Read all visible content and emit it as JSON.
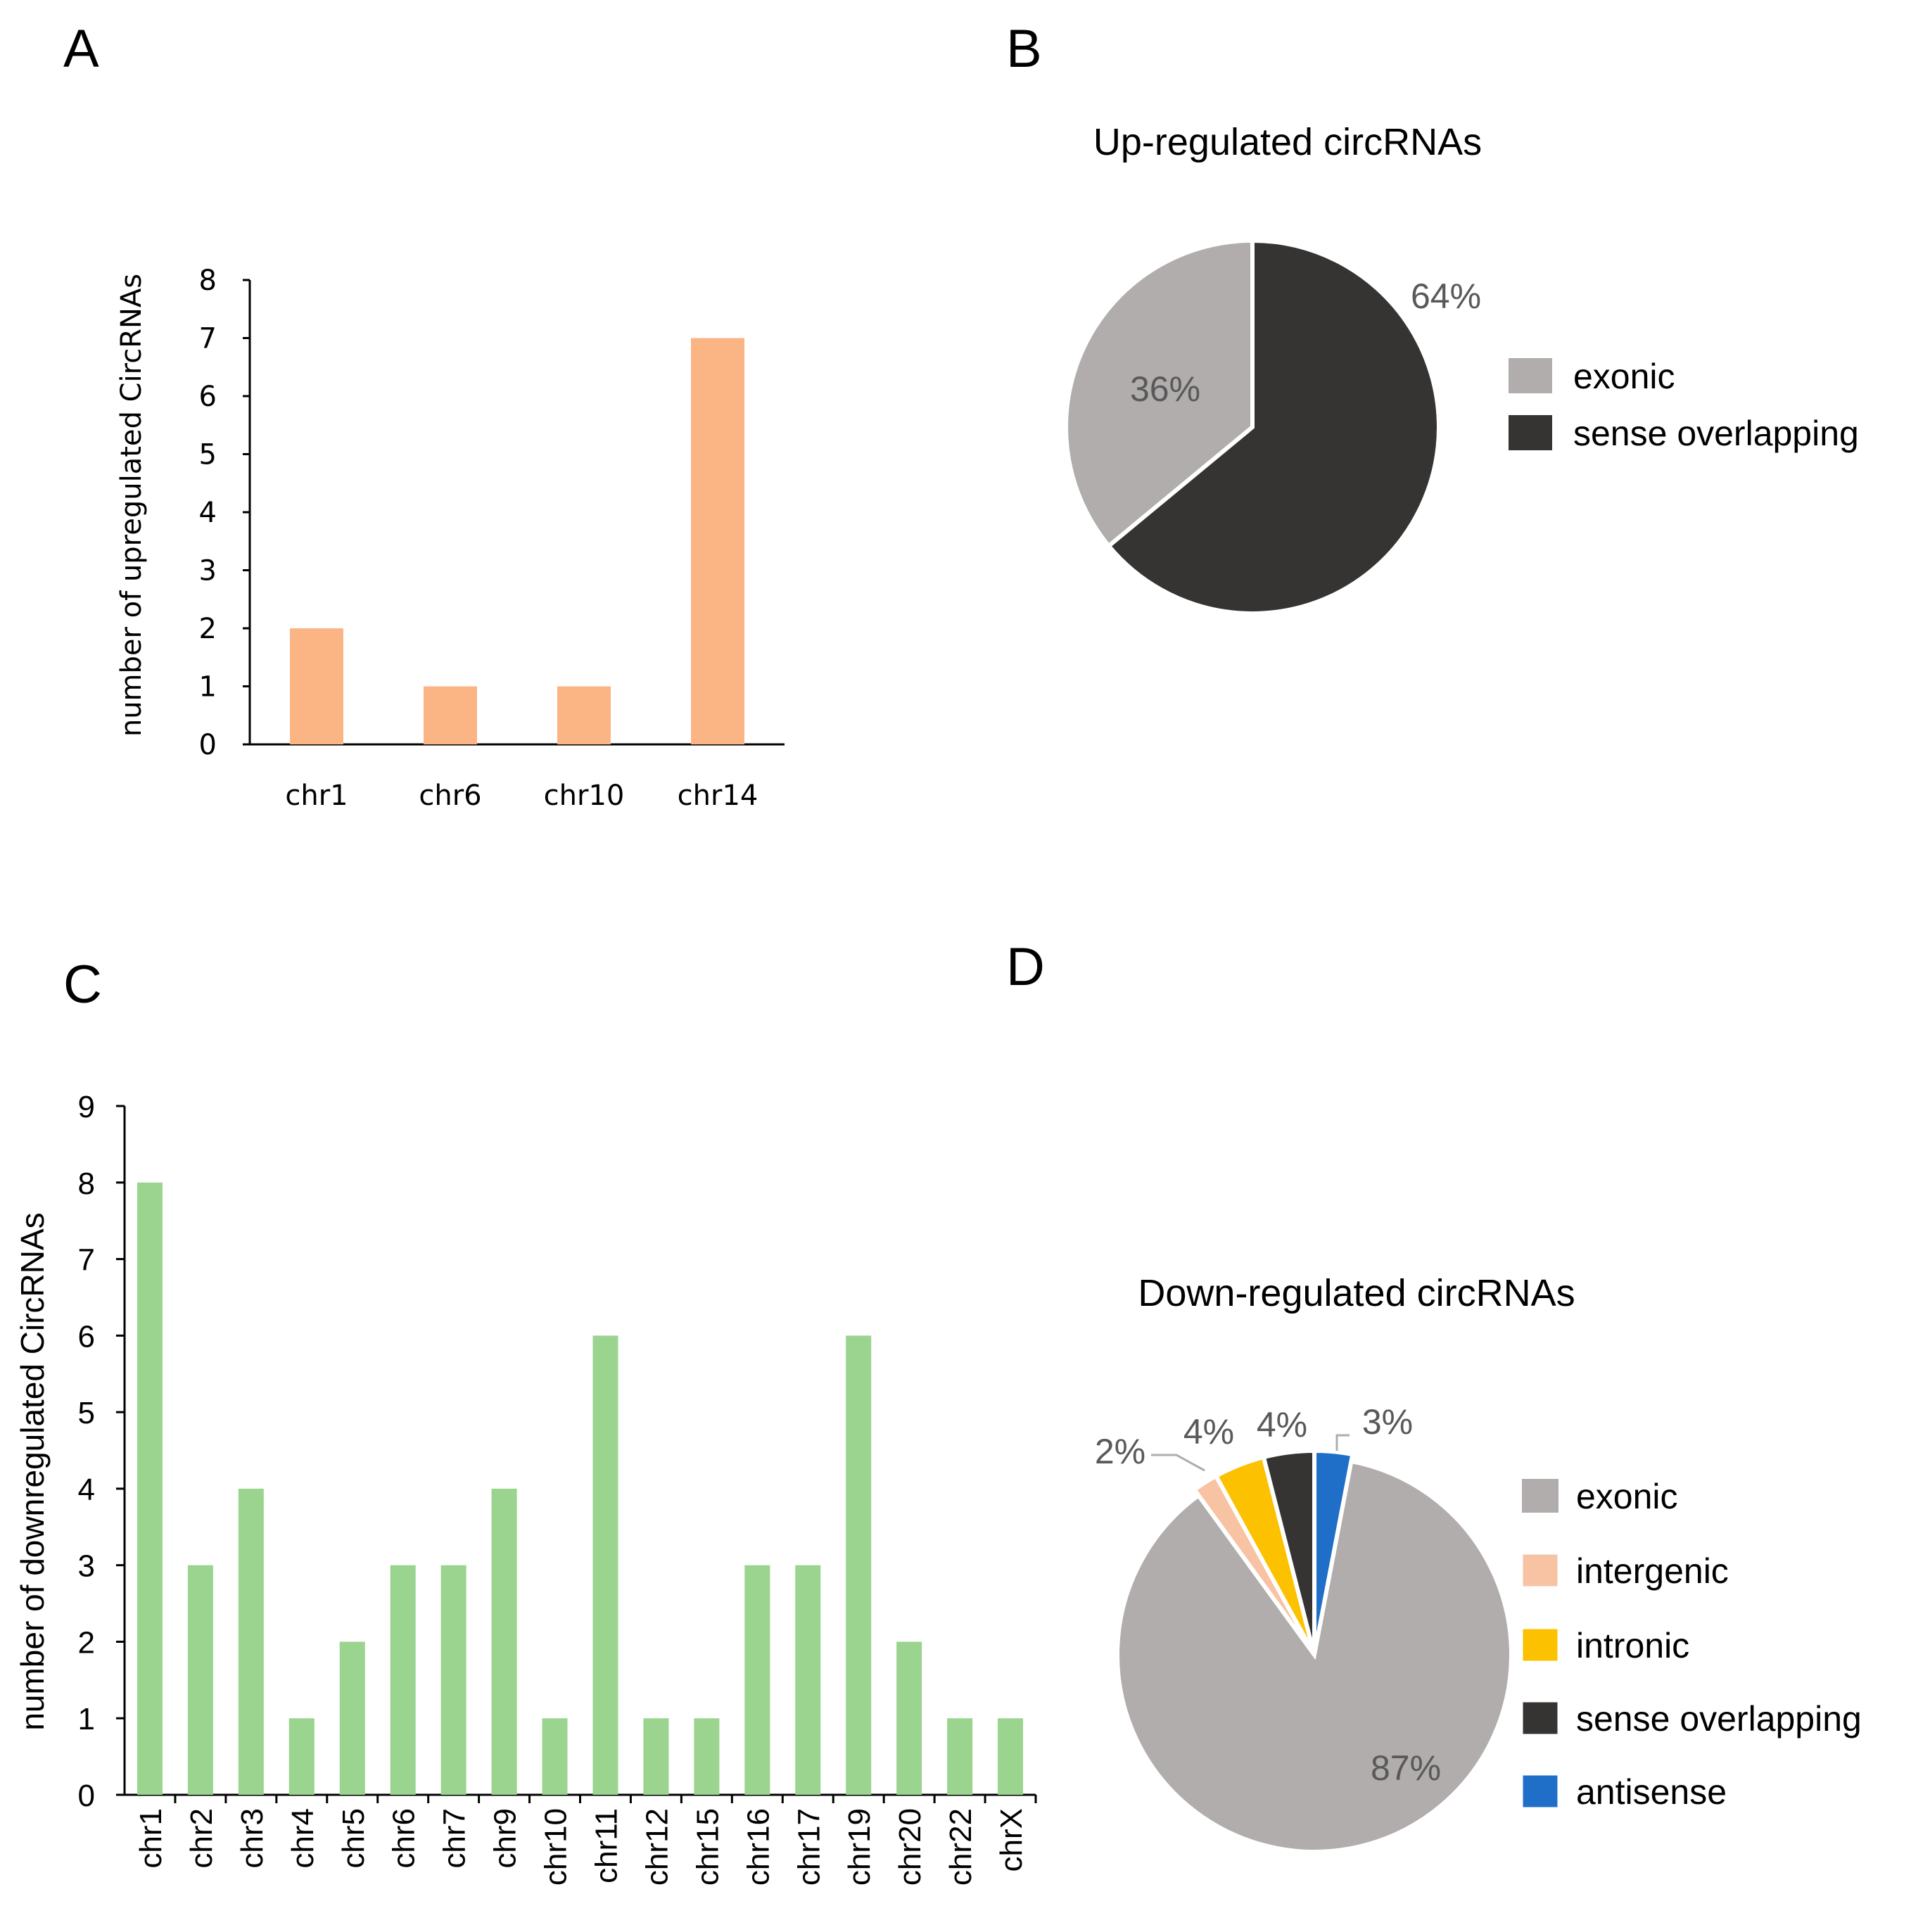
{
  "panels": {
    "A": "A",
    "B": "B",
    "C": "C",
    "D": "D"
  },
  "colors": {
    "bar_up": "#FBB584",
    "bar_down": "#9AD48E",
    "exonic": "#B0ADAC",
    "sense_overlapping": "#363333",
    "intergenic": "#F7C3A3",
    "intronic": "#FCC100",
    "antisense": "#1F6FC8"
  },
  "chart_data": [
    {
      "id": "A",
      "type": "bar",
      "title": "",
      "xlabel": "",
      "ylabel": "number of upregulated CircRNAs",
      "categories": [
        "chr1",
        "chr6",
        "chr10",
        "chr14"
      ],
      "values": [
        2,
        1,
        1,
        7
      ],
      "ylim": [
        0,
        8
      ],
      "yticks": [
        "0",
        "1",
        "2",
        "3",
        "4",
        "5",
        "6",
        "7",
        "8"
      ],
      "grid": false
    },
    {
      "id": "B",
      "type": "pie",
      "title": "Up-regulated circRNAs",
      "slices": [
        {
          "label": "sense overlapping",
          "value": 64,
          "pct_label": "64%",
          "color_key": "sense_overlapping"
        },
        {
          "label": "exonic",
          "value": 36,
          "pct_label": "36%",
          "color_key": "exonic"
        }
      ],
      "legend": [
        "exonic",
        "sense overlapping"
      ],
      "legend_position": "right"
    },
    {
      "id": "C",
      "type": "bar",
      "title": "",
      "xlabel": "",
      "ylabel": "number of downregulated CircRNAs",
      "categories": [
        "chr1",
        "chr2",
        "chr3",
        "chr4",
        "chr5",
        "chr6",
        "chr7",
        "chr9",
        "chr10",
        "chr11",
        "chr12",
        "chr15",
        "chr16",
        "chr17",
        "chr19",
        "chr20",
        "chr22",
        "chrX"
      ],
      "values": [
        8,
        3,
        4,
        1,
        2,
        3,
        3,
        4,
        1,
        6,
        1,
        1,
        3,
        3,
        6,
        2,
        1,
        1
      ],
      "ylim": [
        0,
        9
      ],
      "yticks": [
        "0",
        "1",
        "2",
        "3",
        "4",
        "5",
        "6",
        "7",
        "8",
        "9"
      ],
      "grid": false
    },
    {
      "id": "D",
      "type": "pie",
      "title": "Down-regulated circRNAs",
      "slices": [
        {
          "label": "antisense",
          "value": 3,
          "pct_label": "3%",
          "color_key": "antisense"
        },
        {
          "label": "exonic",
          "value": 87,
          "pct_label": "87%",
          "color_key": "exonic"
        },
        {
          "label": "intergenic",
          "value": 2,
          "pct_label": "2%",
          "color_key": "intergenic"
        },
        {
          "label": "intronic",
          "value": 4,
          "pct_label": "4%",
          "color_key": "intronic"
        },
        {
          "label": "sense overlapping",
          "value": 4,
          "pct_label": "4%",
          "color_key": "sense_overlapping"
        }
      ],
      "legend": [
        "exonic",
        "intergenic",
        "intronic",
        "sense overlapping",
        "antisense"
      ],
      "legend_position": "right"
    }
  ]
}
